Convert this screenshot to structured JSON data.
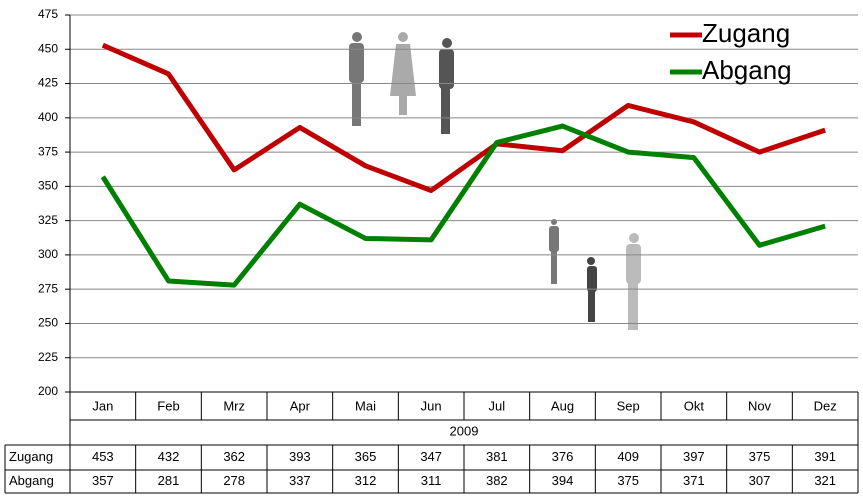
{
  "chart_data": {
    "type": "line",
    "categories": [
      "Jan",
      "Feb",
      "Mrz",
      "Apr",
      "Mai",
      "Jun",
      "Jul",
      "Aug",
      "Sep",
      "Okt",
      "Nov",
      "Dez"
    ],
    "xlabel": "2009",
    "series": [
      {
        "name": "Zugang",
        "color": "#c00000",
        "values": [
          453,
          432,
          362,
          393,
          365,
          347,
          381,
          376,
          409,
          397,
          375,
          391
        ]
      },
      {
        "name": "Abgang",
        "color": "#008000",
        "values": [
          357,
          281,
          278,
          337,
          312,
          311,
          382,
          394,
          375,
          371,
          307,
          321
        ]
      }
    ],
    "ylim": [
      200,
      475
    ],
    "yticks": [
      200,
      225,
      250,
      275,
      300,
      325,
      350,
      375,
      400,
      425,
      450,
      475
    ],
    "grid": true,
    "legend": "upper right"
  }
}
